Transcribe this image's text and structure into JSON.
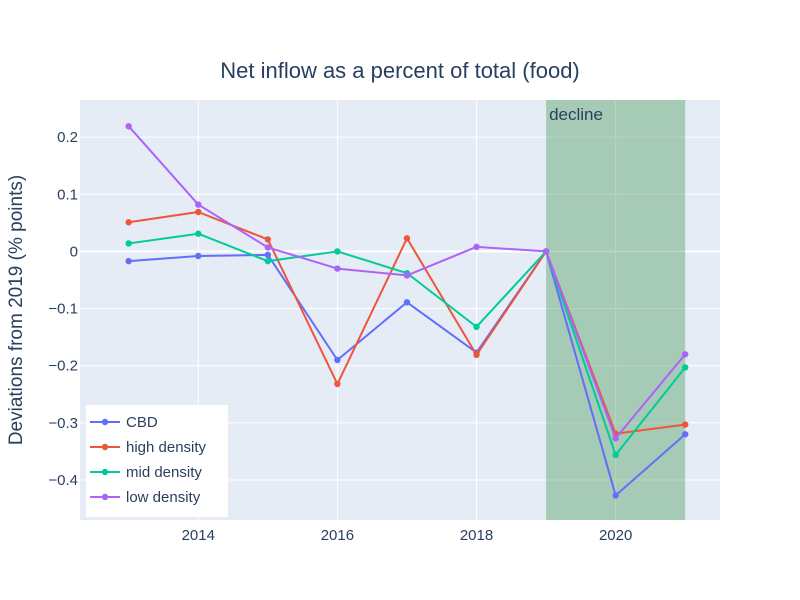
{
  "chart_data": {
    "type": "line",
    "title": "Net inflow as a percent of total (food)",
    "xlabel": "",
    "ylabel": "Deviations from 2019 (% points)",
    "x": [
      2013,
      2014,
      2015,
      2016,
      2017,
      2018,
      2019,
      2020,
      2021
    ],
    "xlim": [
      2012.3,
      2021.5
    ],
    "ylim": [
      -0.47,
      0.265
    ],
    "xticks": [
      2014,
      2016,
      2018,
      2020
    ],
    "xtick_labels": [
      "2014",
      "2016",
      "2018",
      "2020"
    ],
    "yticks": [
      0.2,
      0.1,
      0,
      -0.1,
      -0.2,
      -0.3,
      -0.4
    ],
    "ytick_labels": [
      "0.2",
      "0.1",
      "0",
      "−0.1",
      "−0.2",
      "−0.3",
      "−0.4"
    ],
    "grid": true,
    "legend_position": "bottom-left",
    "series": [
      {
        "name": "CBD",
        "color": "#636efa",
        "values": [
          -0.017,
          -0.008,
          -0.006,
          -0.19,
          -0.089,
          -0.177,
          0,
          -0.427,
          -0.32
        ]
      },
      {
        "name": "high density",
        "color": "#ef553b",
        "values": [
          0.051,
          0.069,
          0.021,
          -0.232,
          0.023,
          -0.181,
          0,
          -0.319,
          -0.303
        ]
      },
      {
        "name": "mid density",
        "color": "#00cc96",
        "values": [
          0.014,
          0.031,
          -0.017,
          0.0,
          -0.038,
          -0.132,
          0,
          -0.356,
          -0.203
        ]
      },
      {
        "name": "low density",
        "color": "#ab63fa",
        "values": [
          0.219,
          0.082,
          0.007,
          -0.03,
          -0.042,
          0.008,
          0,
          -0.327,
          -0.18
        ]
      }
    ],
    "shaded_region": {
      "x0": 2019,
      "x1": 2021,
      "label": "decline",
      "color": "#2e8b3e"
    }
  }
}
